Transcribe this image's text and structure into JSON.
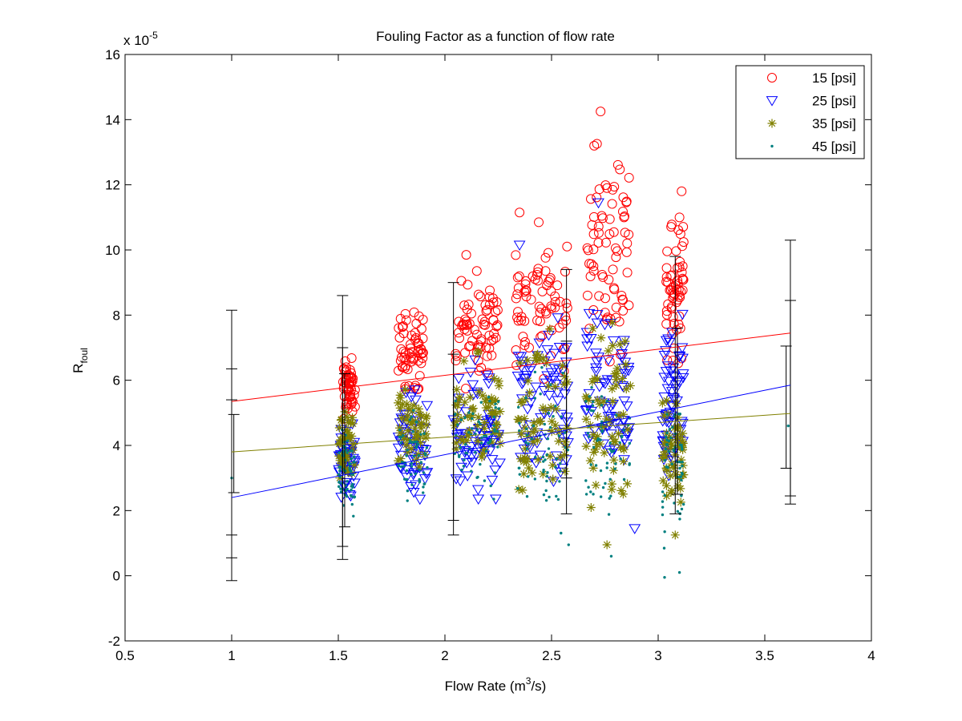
{
  "chart_data": {
    "type": "scatter",
    "title": "Fouling Factor as a function of flow rate",
    "xlabel": {
      "main": "Flow Rate (m",
      "sup": "3",
      "tail": "/s)"
    },
    "ylabel": {
      "main": "R",
      "sub": "foul"
    },
    "y_multiplier": {
      "base": "x 10",
      "exp": "-5"
    },
    "xlim": [
      0.5,
      4
    ],
    "ylim": [
      -2,
      16
    ],
    "x_ticks": [
      "0.5",
      "1",
      "1.5",
      "2",
      "2.5",
      "3",
      "3.5",
      "4"
    ],
    "y_ticks": [
      "-2",
      "0",
      "2",
      "4",
      "6",
      "8",
      "10",
      "12",
      "14",
      "16"
    ],
    "grid": false,
    "legend_position": "top-right",
    "series": [
      {
        "name": "15 [psi]",
        "marker": "circle",
        "color": "#ff0000",
        "clusters": [
          {
            "x_min": 1.52,
            "x_max": 1.58,
            "y_min": 4.5,
            "y_max": 7.0,
            "n": 55
          },
          {
            "x_min": 1.78,
            "x_max": 1.9,
            "y_min": 5.2,
            "y_max": 8.6,
            "n": 60
          },
          {
            "x_min": 2.05,
            "x_max": 2.25,
            "y_min": 5.3,
            "y_max": 9.8,
            "n": 70
          },
          {
            "x_min": 2.33,
            "x_max": 2.58,
            "y_min": 5.6,
            "y_max": 11.1,
            "n": 70
          },
          {
            "x_min": 2.66,
            "x_max": 2.87,
            "y_min": 6.0,
            "y_max": 14.2,
            "n": 70
          },
          {
            "x_min": 3.03,
            "x_max": 3.12,
            "y_min": 5.8,
            "y_max": 11.8,
            "n": 60
          }
        ],
        "extra_points": [
          [
            2.7,
            13.2
          ],
          [
            2.73,
            14.25
          ],
          [
            2.76,
            11.9
          ],
          [
            2.35,
            11.15
          ],
          [
            2.44,
            10.85
          ],
          [
            3.11,
            11.8
          ],
          [
            3.1,
            11.0
          ],
          [
            2.84,
            11.0
          ],
          [
            2.1,
            9.85
          ]
        ],
        "fit_line": {
          "x": [
            1.0,
            3.62
          ],
          "y": [
            5.35,
            7.45
          ]
        }
      },
      {
        "name": "25 [psi]",
        "marker": "triangle-down",
        "color": "#0000ff",
        "clusters": [
          {
            "x_min": 1.5,
            "x_max": 1.58,
            "y_min": 2.0,
            "y_max": 5.0,
            "n": 45
          },
          {
            "x_min": 1.78,
            "x_max": 1.92,
            "y_min": 1.7,
            "y_max": 6.2,
            "n": 55
          },
          {
            "x_min": 2.04,
            "x_max": 2.26,
            "y_min": 1.6,
            "y_max": 7.0,
            "n": 70
          },
          {
            "x_min": 2.34,
            "x_max": 2.58,
            "y_min": 1.5,
            "y_max": 8.8,
            "n": 75
          },
          {
            "x_min": 2.66,
            "x_max": 2.87,
            "y_min": 1.5,
            "y_max": 9.0,
            "n": 75
          },
          {
            "x_min": 3.02,
            "x_max": 3.12,
            "y_min": 1.5,
            "y_max": 9.3,
            "n": 65
          }
        ],
        "extra_points": [
          [
            2.72,
            11.45
          ],
          [
            2.35,
            10.15
          ],
          [
            2.89,
            1.45
          ]
        ],
        "fit_line": {
          "x": [
            1.0,
            3.62
          ],
          "y": [
            2.4,
            5.85
          ]
        }
      },
      {
        "name": "35 [psi]",
        "marker": "asterisk",
        "color": "#808000",
        "clusters": [
          {
            "x_min": 1.5,
            "x_max": 1.58,
            "y_min": 2.4,
            "y_max": 5.6,
            "n": 40
          },
          {
            "x_min": 1.78,
            "x_max": 1.92,
            "y_min": 2.8,
            "y_max": 6.2,
            "n": 50
          },
          {
            "x_min": 2.04,
            "x_max": 2.26,
            "y_min": 2.5,
            "y_max": 7.2,
            "n": 60
          },
          {
            "x_min": 2.34,
            "x_max": 2.58,
            "y_min": 1.4,
            "y_max": 8.5,
            "n": 65
          },
          {
            "x_min": 2.66,
            "x_max": 2.87,
            "y_min": 1.0,
            "y_max": 8.7,
            "n": 65
          },
          {
            "x_min": 3.02,
            "x_max": 3.12,
            "y_min": 1.2,
            "y_max": 7.0,
            "n": 55
          }
        ],
        "extra_points": [
          [
            2.76,
            0.95
          ],
          [
            3.08,
            1.25
          ]
        ],
        "fit_line": {
          "x": [
            1.0,
            3.62
          ],
          "y": [
            3.8,
            4.98
          ]
        }
      },
      {
        "name": "45 [psi]",
        "marker": "dot",
        "color": "#008080",
        "clusters": [
          {
            "x_min": 1.5,
            "x_max": 1.58,
            "y_min": 1.3,
            "y_max": 5.0,
            "n": 60
          },
          {
            "x_min": 1.78,
            "x_max": 1.92,
            "y_min": 1.6,
            "y_max": 5.6,
            "n": 55
          },
          {
            "x_min": 2.04,
            "x_max": 2.26,
            "y_min": 1.8,
            "y_max": 6.8,
            "n": 60
          },
          {
            "x_min": 2.34,
            "x_max": 2.58,
            "y_min": 0.9,
            "y_max": 7.0,
            "n": 60
          },
          {
            "x_min": 2.66,
            "x_max": 2.87,
            "y_min": 0.6,
            "y_max": 7.5,
            "n": 60
          },
          {
            "x_min": 3.02,
            "x_max": 3.12,
            "y_min": 0.0,
            "y_max": 6.5,
            "n": 55
          }
        ],
        "extra_points": [
          [
            1.0,
            3.0
          ],
          [
            3.61,
            4.6
          ],
          [
            3.03,
            -0.05
          ],
          [
            3.1,
            0.1
          ],
          [
            2.78,
            0.6
          ],
          [
            2.58,
            0.95
          ]
        ],
        "fit_line": null
      }
    ],
    "error_bars": [
      {
        "x": 1.0,
        "lower": -0.15,
        "upper": 8.15
      },
      {
        "x": 1.0,
        "lower": 0.55,
        "upper": 6.35
      },
      {
        "x": 1.0,
        "lower": 1.25,
        "upper": 5.4
      },
      {
        "x": 1.01,
        "lower": 2.55,
        "upper": 4.95
      },
      {
        "x": 1.52,
        "lower": 0.5,
        "upper": 8.6
      },
      {
        "x": 1.52,
        "lower": 0.9,
        "upper": 7.0
      },
      {
        "x": 1.53,
        "lower": 1.5,
        "upper": 6.2
      },
      {
        "x": 2.04,
        "lower": 1.25,
        "upper": 9.0
      },
      {
        "x": 2.04,
        "lower": 1.7,
        "upper": 6.8
      },
      {
        "x": 2.57,
        "lower": 1.9,
        "upper": 9.4
      },
      {
        "x": 2.57,
        "lower": 3.0,
        "upper": 7.2
      },
      {
        "x": 3.08,
        "lower": 1.9,
        "upper": 9.8
      },
      {
        "x": 3.09,
        "lower": 2.5,
        "upper": 7.6
      },
      {
        "x": 3.62,
        "lower": 2.2,
        "upper": 10.3
      },
      {
        "x": 3.62,
        "lower": 2.45,
        "upper": 8.45
      },
      {
        "x": 3.6,
        "lower": 3.3,
        "upper": 7.05
      }
    ]
  }
}
